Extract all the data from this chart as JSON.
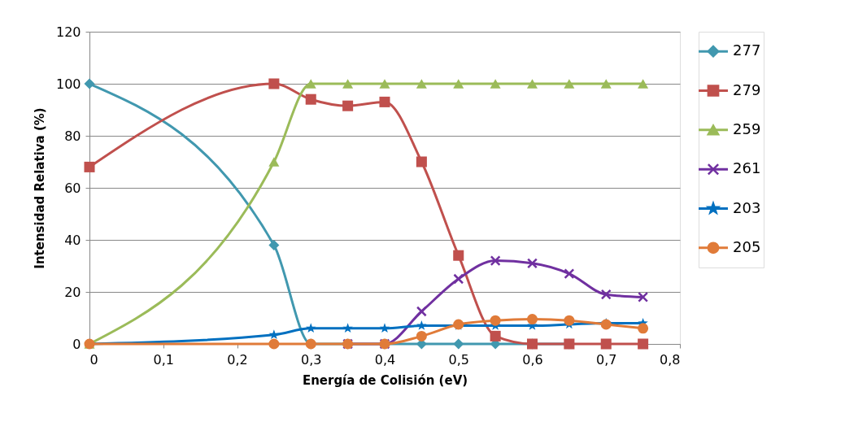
{
  "chart_data": {
    "type": "line",
    "xlabel": "Energía de Colisión (eV)",
    "ylabel": "Intensidad Relativa (%)",
    "x": [
      0,
      0.25,
      0.3,
      0.35,
      0.4,
      0.45,
      0.5,
      0.55,
      0.6,
      0.65,
      0.7,
      0.75
    ],
    "series": [
      {
        "name": "277",
        "color": "#4198af",
        "marker": "diamond",
        "values": [
          100,
          38,
          0,
          0,
          0,
          0,
          0,
          0,
          0,
          0,
          null,
          null
        ]
      },
      {
        "name": "279",
        "color": "#c0504d",
        "marker": "square",
        "values": [
          68,
          100,
          94,
          91.5,
          93,
          70,
          34,
          3,
          0,
          0,
          0,
          0
        ]
      },
      {
        "name": "259",
        "color": "#9bbb59",
        "marker": "triangle",
        "values": [
          0,
          70,
          100,
          100,
          100,
          100,
          100,
          100,
          100,
          100,
          100,
          100
        ]
      },
      {
        "name": "261",
        "color": "#7030a0",
        "marker": "cross",
        "values": [
          null,
          null,
          null,
          0,
          0,
          12.5,
          25,
          32,
          31,
          27,
          19,
          18
        ]
      },
      {
        "name": "203",
        "color": "#0070c0",
        "marker": "star",
        "values": [
          0,
          3.5,
          6,
          6,
          6,
          7,
          7,
          7,
          7,
          7.5,
          8,
          8
        ]
      },
      {
        "name": "205",
        "color": "#e07b39",
        "marker": "circle",
        "values": [
          0,
          0,
          0,
          0,
          0,
          3,
          7.5,
          9,
          9.5,
          9,
          7.5,
          6
        ]
      }
    ],
    "xlim": [
      0,
      0.8
    ],
    "ylim": [
      0,
      120
    ],
    "xticks": [
      0,
      {
        "value": 0.1,
        "label": "0,1"
      },
      {
        "value": 0.2,
        "label": "0,2"
      },
      {
        "value": 0.3,
        "label": "0,3"
      },
      {
        "value": 0.4,
        "label": "0,4"
      },
      {
        "value": 0.5,
        "label": "0,5"
      },
      {
        "value": 0.6,
        "label": "0,6"
      },
      {
        "value": 0.7,
        "label": "0,7"
      },
      {
        "value": 0.8,
        "label": "0,8"
      }
    ],
    "yticks": [
      0,
      20,
      40,
      60,
      80,
      100,
      120
    ],
    "grid": "y",
    "legend": "right",
    "line_style": "solid"
  }
}
